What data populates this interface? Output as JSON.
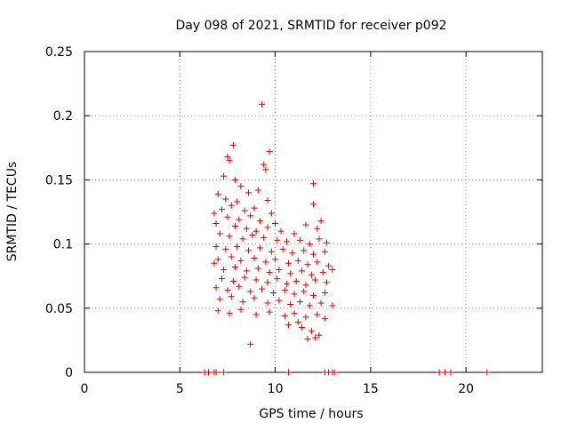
{
  "chart_data": {
    "type": "scatter",
    "title": "Day 098 of 2021, SRMTID for receiver p092",
    "xlabel": "GPS time / hours",
    "ylabel": "SRMTID / TECUs",
    "xlim": [
      0,
      24
    ],
    "ylim": [
      0,
      0.25
    ],
    "xticks": [
      0,
      5,
      10,
      15,
      20
    ],
    "xtick_labels": [
      "0",
      "5",
      "10",
      "15",
      "20"
    ],
    "yticks": [
      0,
      0.05,
      0.1,
      0.15,
      0.2,
      0.25
    ],
    "ytick_labels": [
      "0",
      "0.05",
      "0.1",
      "0.15",
      "0.2",
      "0.25"
    ],
    "grid": true,
    "marker": "+",
    "series_color": "#e00000",
    "series": [
      {
        "name": "SRMTID",
        "points": [
          [
            9.3,
            0.209
          ],
          [
            7.8,
            0.177
          ],
          [
            9.7,
            0.172
          ],
          [
            7.5,
            0.168
          ],
          [
            7.6,
            0.165
          ],
          [
            9.4,
            0.162
          ],
          [
            9.5,
            0.158
          ],
          [
            7.3,
            0.153
          ],
          [
            7.9,
            0.15
          ],
          [
            8.2,
            0.145
          ],
          [
            7.0,
            0.139
          ],
          [
            8.6,
            0.14
          ],
          [
            9.1,
            0.142
          ],
          [
            12.0,
            0.147
          ],
          [
            12.0,
            0.131
          ],
          [
            7.4,
            0.135
          ],
          [
            8.0,
            0.133
          ],
          [
            9.6,
            0.134
          ],
          [
            6.8,
            0.124
          ],
          [
            7.2,
            0.127
          ],
          [
            7.7,
            0.13
          ],
          [
            8.4,
            0.126
          ],
          [
            8.9,
            0.128
          ],
          [
            9.8,
            0.124
          ],
          [
            7.5,
            0.121
          ],
          [
            8.1,
            0.119
          ],
          [
            8.7,
            0.122
          ],
          [
            9.2,
            0.118
          ],
          [
            10.0,
            0.116
          ],
          [
            6.9,
            0.116
          ],
          [
            7.9,
            0.114
          ],
          [
            8.5,
            0.112
          ],
          [
            9.0,
            0.11
          ],
          [
            9.6,
            0.113
          ],
          [
            10.3,
            0.11
          ],
          [
            11.6,
            0.115
          ],
          [
            12.2,
            0.112
          ],
          [
            12.4,
            0.118
          ],
          [
            7.1,
            0.108
          ],
          [
            7.6,
            0.106
          ],
          [
            8.3,
            0.104
          ],
          [
            8.8,
            0.107
          ],
          [
            9.4,
            0.105
          ],
          [
            10.1,
            0.103
          ],
          [
            10.6,
            0.102
          ],
          [
            11.0,
            0.108
          ],
          [
            11.3,
            0.103
          ],
          [
            11.8,
            0.1
          ],
          [
            12.3,
            0.104
          ],
          [
            12.7,
            0.101
          ],
          [
            6.9,
            0.098
          ],
          [
            7.4,
            0.096
          ],
          [
            8.0,
            0.098
          ],
          [
            8.6,
            0.095
          ],
          [
            9.2,
            0.097
          ],
          [
            9.8,
            0.094
          ],
          [
            10.4,
            0.096
          ],
          [
            10.9,
            0.093
          ],
          [
            11.5,
            0.095
          ],
          [
            12.0,
            0.092
          ],
          [
            12.6,
            0.094
          ],
          [
            7.0,
            0.088
          ],
          [
            7.7,
            0.09
          ],
          [
            8.2,
            0.087
          ],
          [
            8.9,
            0.089
          ],
          [
            9.5,
            0.086
          ],
          [
            10.0,
            0.088
          ],
          [
            10.7,
            0.085
          ],
          [
            11.2,
            0.087
          ],
          [
            11.7,
            0.084
          ],
          [
            12.2,
            0.086
          ],
          [
            12.8,
            0.083
          ],
          [
            6.8,
            0.085
          ],
          [
            7.3,
            0.08
          ],
          [
            7.9,
            0.082
          ],
          [
            8.5,
            0.079
          ],
          [
            9.1,
            0.081
          ],
          [
            9.7,
            0.078
          ],
          [
            10.2,
            0.08
          ],
          [
            10.8,
            0.077
          ],
          [
            11.4,
            0.079
          ],
          [
            11.9,
            0.076
          ],
          [
            12.5,
            0.078
          ],
          [
            13.0,
            0.08
          ],
          [
            7.2,
            0.073
          ],
          [
            7.8,
            0.071
          ],
          [
            8.4,
            0.074
          ],
          [
            9.0,
            0.072
          ],
          [
            9.6,
            0.07
          ],
          [
            10.1,
            0.073
          ],
          [
            10.6,
            0.069
          ],
          [
            11.1,
            0.071
          ],
          [
            11.6,
            0.068
          ],
          [
            12.1,
            0.072
          ],
          [
            12.7,
            0.07
          ],
          [
            6.9,
            0.066
          ],
          [
            7.5,
            0.064
          ],
          [
            8.1,
            0.067
          ],
          [
            8.7,
            0.063
          ],
          [
            9.3,
            0.065
          ],
          [
            9.9,
            0.062
          ],
          [
            10.5,
            0.064
          ],
          [
            11.0,
            0.061
          ],
          [
            11.5,
            0.063
          ],
          [
            12.0,
            0.06
          ],
          [
            12.6,
            0.062
          ],
          [
            7.1,
            0.057
          ],
          [
            7.7,
            0.059
          ],
          [
            8.3,
            0.055
          ],
          [
            8.9,
            0.058
          ],
          [
            9.6,
            0.054
          ],
          [
            10.2,
            0.056
          ],
          [
            10.8,
            0.053
          ],
          [
            11.3,
            0.055
          ],
          [
            11.8,
            0.052
          ],
          [
            12.4,
            0.054
          ],
          [
            13.0,
            0.052
          ],
          [
            7.0,
            0.048
          ],
          [
            7.6,
            0.046
          ],
          [
            8.2,
            0.049
          ],
          [
            9.0,
            0.045
          ],
          [
            9.7,
            0.047
          ],
          [
            10.5,
            0.044
          ],
          [
            11.0,
            0.046
          ],
          [
            11.6,
            0.043
          ],
          [
            12.2,
            0.045
          ],
          [
            12.6,
            0.042
          ],
          [
            10.7,
            0.037
          ],
          [
            11.4,
            0.035
          ],
          [
            11.9,
            0.032
          ],
          [
            12.3,
            0.029
          ],
          [
            11.7,
            0.026
          ],
          [
            8.7,
            0.022
          ],
          [
            12.1,
            0.027
          ],
          [
            11.2,
            0.039
          ],
          [
            6.3,
            0.0
          ],
          [
            6.5,
            0.0
          ],
          [
            6.8,
            0.0
          ],
          [
            6.9,
            0.0
          ],
          [
            7.3,
            0.0
          ],
          [
            10.7,
            0.0
          ],
          [
            12.6,
            0.0
          ],
          [
            12.8,
            0.0
          ],
          [
            13.0,
            0.0
          ],
          [
            13.1,
            0.0
          ],
          [
            18.6,
            0.0
          ],
          [
            18.9,
            0.0
          ],
          [
            19.2,
            0.0
          ],
          [
            21.1,
            0.0
          ]
        ]
      }
    ]
  }
}
